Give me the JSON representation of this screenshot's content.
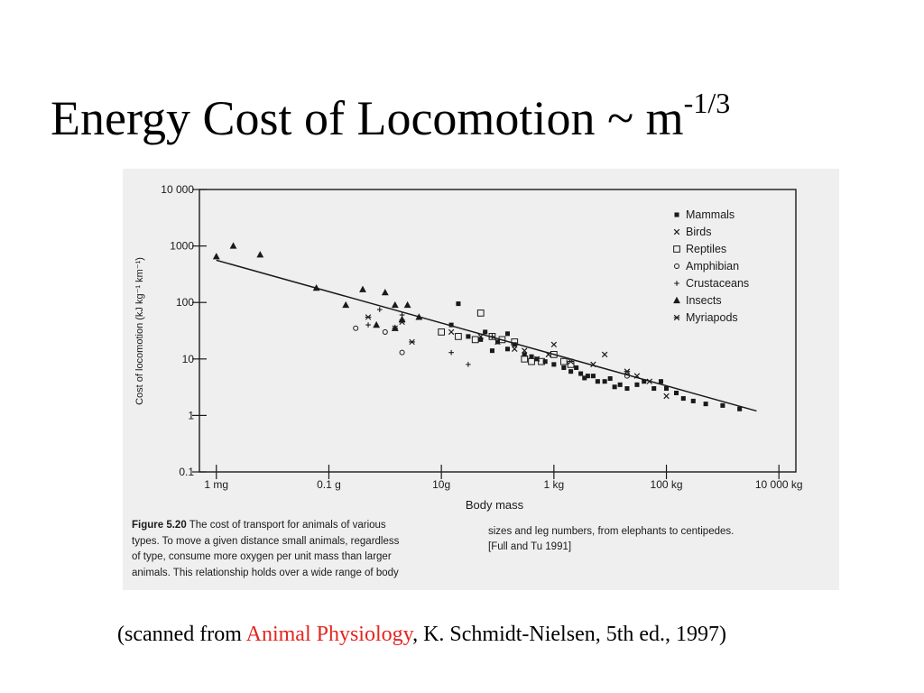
{
  "slide": {
    "title_main": "Energy Cost of Locomotion ~ m",
    "title_exponent": "-1/3"
  },
  "citation": {
    "prefix": "(scanned from ",
    "book": "Animal Physiology",
    "suffix": ", K. Schmidt-Nielsen, 5th ed., 1997)"
  },
  "figure_caption": {
    "label": "Figure 5.20",
    "col1_line1": " The cost of transport for animals of various",
    "col1_line2": "types. To move a given distance small animals, regardless",
    "col1_line3": "of type, consume more oxygen per unit mass than larger",
    "col1_line4": "animals. This relationship holds over a wide range of body",
    "col2_line1": "sizes and leg numbers, from elephants to centipedes.",
    "col2_line2": "[Full and Tu 1991]"
  },
  "colors": {
    "accent_red": "#e5261f",
    "scan_background": "#efefef",
    "ink": "#1a1a1a"
  },
  "chart_data": {
    "type": "scatter",
    "title": "",
    "xlabel": "Body mass",
    "ylabel": "Cost of locomotion (kJ kg⁻¹ km⁻¹)",
    "x_scale": "log",
    "y_scale": "log",
    "xlim_g": [
      0.0005,
      20000000
    ],
    "ylim": [
      0.1,
      10000
    ],
    "x_ticks": [
      {
        "value_g": 0.001,
        "label": "1 mg"
      },
      {
        "value_g": 0.1,
        "label": "0.1 g"
      },
      {
        "value_g": 10,
        "label": "10g"
      },
      {
        "value_g": 1000,
        "label": "1 kg"
      },
      {
        "value_g": 100000,
        "label": "100 kg"
      },
      {
        "value_g": 10000000,
        "label": "10 000 kg"
      }
    ],
    "y_ticks": [
      {
        "value": 0.1,
        "label": "0.1"
      },
      {
        "value": 1,
        "label": "1"
      },
      {
        "value": 10,
        "label": "10"
      },
      {
        "value": 100,
        "label": "100"
      },
      {
        "value": 1000,
        "label": "1000"
      },
      {
        "value": 10000,
        "label": "10 000"
      }
    ],
    "grid": false,
    "legend_position": "top-right",
    "fit_line": {
      "x_g": [
        0.001,
        4000000
      ],
      "y": [
        560,
        1.2
      ]
    },
    "series": [
      {
        "name": "Mammals",
        "marker": "square",
        "points": [
          [
            20,
            95
          ],
          [
            15,
            40
          ],
          [
            30,
            25
          ],
          [
            60,
            30
          ],
          [
            100,
            20
          ],
          [
            150,
            15
          ],
          [
            200,
            18
          ],
          [
            300,
            12
          ],
          [
            500,
            10
          ],
          [
            700,
            9
          ],
          [
            1000,
            8
          ],
          [
            1500,
            7
          ],
          [
            2000,
            6
          ],
          [
            3000,
            5.5
          ],
          [
            4000,
            5
          ],
          [
            5000,
            5
          ],
          [
            8000,
            4
          ],
          [
            10000,
            4.5
          ],
          [
            15000,
            3.5
          ],
          [
            20000,
            3
          ],
          [
            30000,
            3.5
          ],
          [
            40000,
            4
          ],
          [
            60000,
            3
          ],
          [
            80000,
            4
          ],
          [
            100000,
            3
          ],
          [
            150000,
            2.5
          ],
          [
            200000,
            2
          ],
          [
            300000,
            1.8
          ],
          [
            500000,
            1.6
          ],
          [
            1000000,
            1.5
          ],
          [
            2000000,
            1.3
          ],
          [
            50,
            22
          ],
          [
            80,
            14
          ],
          [
            2500,
            7
          ],
          [
            6000,
            4
          ],
          [
            12000,
            3.2
          ],
          [
            150,
            28
          ],
          [
            400,
            11
          ],
          [
            3500,
            4.6
          ]
        ]
      },
      {
        "name": "Birds",
        "marker": "x",
        "points": [
          [
            15,
            30
          ],
          [
            50,
            25
          ],
          [
            100,
            20
          ],
          [
            200,
            15
          ],
          [
            300,
            14
          ],
          [
            500,
            10
          ],
          [
            800,
            12
          ],
          [
            1000,
            18
          ],
          [
            2000,
            9
          ],
          [
            5000,
            8
          ],
          [
            8000,
            12
          ],
          [
            20000,
            6
          ],
          [
            50000,
            4
          ],
          [
            100000,
            2.2
          ],
          [
            30000,
            5
          ]
        ]
      },
      {
        "name": "Reptiles",
        "marker": "open-square",
        "points": [
          [
            10,
            30
          ],
          [
            20,
            25
          ],
          [
            50,
            65
          ],
          [
            40,
            22
          ],
          [
            80,
            25
          ],
          [
            120,
            22
          ],
          [
            200,
            20
          ],
          [
            300,
            10
          ],
          [
            400,
            9
          ],
          [
            1000,
            12
          ],
          [
            600,
            9
          ],
          [
            1500,
            9
          ],
          [
            2000,
            8
          ]
        ]
      },
      {
        "name": "Amphibian",
        "marker": "circle",
        "points": [
          [
            0.3,
            35
          ],
          [
            1,
            30
          ],
          [
            2,
            13
          ],
          [
            20000,
            5
          ]
        ]
      },
      {
        "name": "Crustaceans",
        "marker": "plus",
        "points": [
          [
            0.8,
            75
          ],
          [
            2,
            60
          ],
          [
            15,
            13
          ],
          [
            30,
            8
          ],
          [
            80,
            25
          ],
          [
            0.5,
            40
          ]
        ]
      },
      {
        "name": "Insects",
        "marker": "triangle",
        "points": [
          [
            0.001,
            650
          ],
          [
            0.002,
            1000
          ],
          [
            0.006,
            700
          ],
          [
            0.06,
            180
          ],
          [
            0.2,
            90
          ],
          [
            0.4,
            170
          ],
          [
            1,
            150
          ],
          [
            1.5,
            90
          ],
          [
            2.5,
            90
          ],
          [
            0.7,
            40
          ],
          [
            1.5,
            35
          ],
          [
            2,
            50
          ],
          [
            4,
            55
          ]
        ]
      },
      {
        "name": "Myriapods",
        "marker": "asterisk",
        "points": [
          [
            0.5,
            55
          ],
          [
            1.5,
            35
          ],
          [
            3,
            20
          ],
          [
            2,
            45
          ],
          [
            20000,
            6
          ]
        ]
      }
    ]
  }
}
